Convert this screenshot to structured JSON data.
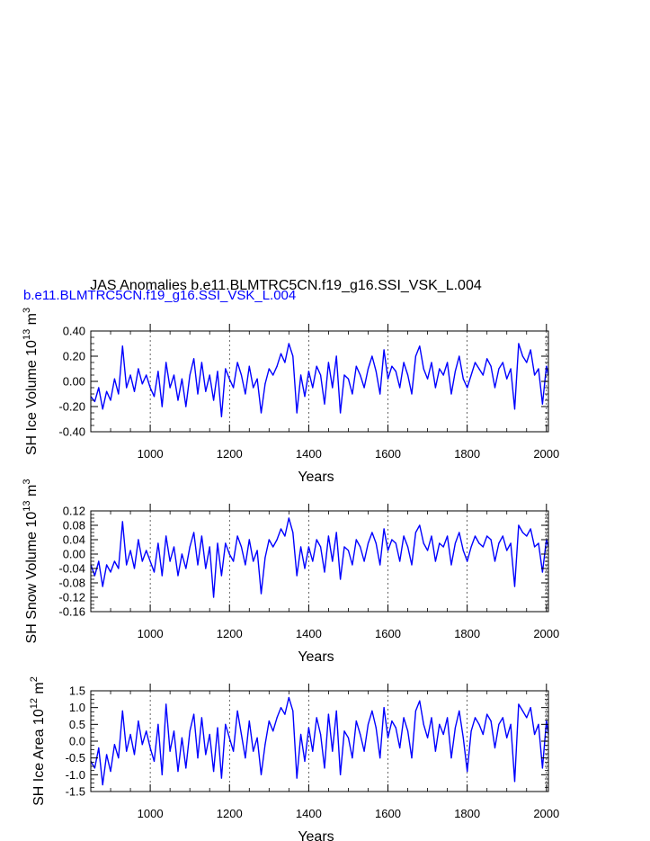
{
  "title": "JAS Anomalies b.e11.BLMTRC5CN.f19_g16.SSI_VSK_L.004",
  "subtitle": "b.e11.BLMTRC5CN.f19_g16.SSI_VSK_L.004",
  "series_color": "#0000ff",
  "chart_data": [
    {
      "type": "line",
      "panel": "ice-volume",
      "ylabel": "SH Ice Volume 10",
      "ylabel_exp": "13",
      "ylabel_unit": " m",
      "ylabel_unit_exp": "3",
      "xlabel": "Years",
      "xlim": [
        850,
        2005
      ],
      "ylim": [
        -0.4,
        0.4
      ],
      "xticks": [
        1000,
        1200,
        1400,
        1600,
        1800,
        2000
      ],
      "yticks": [
        "-0.40",
        "-0.20",
        "0.00",
        "0.20",
        "0.40"
      ],
      "yticks_values": [
        -0.4,
        -0.2,
        0.0,
        0.2,
        0.4
      ],
      "vertical_dashed_lines": [
        1000,
        1200,
        1400,
        1600,
        1800,
        2000
      ],
      "series": [
        {
          "name": "",
          "x": [
            850,
            860,
            870,
            880,
            890,
            900,
            910,
            920,
            930,
            940,
            950,
            960,
            970,
            980,
            990,
            1000,
            1010,
            1020,
            1030,
            1040,
            1050,
            1060,
            1070,
            1080,
            1090,
            1100,
            1110,
            1120,
            1130,
            1140,
            1150,
            1160,
            1170,
            1180,
            1190,
            1200,
            1210,
            1220,
            1230,
            1240,
            1250,
            1260,
            1270,
            1280,
            1290,
            1300,
            1310,
            1320,
            1330,
            1340,
            1350,
            1360,
            1370,
            1380,
            1390,
            1400,
            1410,
            1420,
            1430,
            1440,
            1450,
            1460,
            1470,
            1480,
            1490,
            1500,
            1510,
            1520,
            1530,
            1540,
            1550,
            1560,
            1570,
            1580,
            1590,
            1600,
            1610,
            1620,
            1630,
            1640,
            1650,
            1660,
            1670,
            1680,
            1690,
            1700,
            1710,
            1720,
            1730,
            1740,
            1750,
            1760,
            1770,
            1780,
            1790,
            1800,
            1810,
            1820,
            1830,
            1840,
            1850,
            1860,
            1870,
            1880,
            1890,
            1900,
            1910,
            1920,
            1930,
            1940,
            1950,
            1960,
            1970,
            1980,
            1990,
            2000,
            2005
          ],
          "y": [
            -0.12,
            -0.16,
            -0.05,
            -0.22,
            -0.08,
            -0.15,
            0.02,
            -0.1,
            0.28,
            -0.05,
            0.05,
            -0.08,
            0.1,
            -0.02,
            0.05,
            -0.05,
            -0.12,
            0.08,
            -0.2,
            0.15,
            -0.05,
            0.05,
            -0.15,
            0.02,
            -0.2,
            0.05,
            0.18,
            -0.1,
            0.15,
            -0.08,
            0.05,
            -0.15,
            0.08,
            -0.28,
            0.1,
            0.02,
            -0.05,
            0.15,
            0.05,
            -0.1,
            0.12,
            -0.05,
            0.02,
            -0.25,
            -0.02,
            0.1,
            0.05,
            0.12,
            0.22,
            0.15,
            0.3,
            0.2,
            -0.25,
            0.05,
            -0.12,
            0.08,
            -0.05,
            0.12,
            0.05,
            -0.18,
            0.15,
            -0.05,
            0.2,
            -0.25,
            0.05,
            0.02,
            -0.1,
            0.12,
            0.05,
            -0.05,
            0.1,
            0.2,
            0.08,
            -0.1,
            0.25,
            0.02,
            0.12,
            0.08,
            -0.05,
            0.15,
            0.05,
            -0.1,
            0.2,
            0.28,
            0.1,
            0.02,
            0.15,
            -0.05,
            0.1,
            0.05,
            0.15,
            -0.1,
            0.08,
            0.2,
            0.02,
            -0.05,
            0.05,
            0.15,
            0.1,
            0.05,
            0.18,
            0.12,
            -0.05,
            0.1,
            0.15,
            0.02,
            0.1,
            -0.22,
            0.3,
            0.2,
            0.15,
            0.25,
            0.05,
            0.1,
            -0.18,
            0.12,
            0.05
          ]
        }
      ]
    },
    {
      "type": "line",
      "panel": "snow-volume",
      "ylabel": "SH Snow Volume 10",
      "ylabel_exp": "13",
      "ylabel_unit": " m",
      "ylabel_unit_exp": "3",
      "xlabel": "Years",
      "xlim": [
        850,
        2005
      ],
      "ylim": [
        -0.16,
        0.12
      ],
      "xticks": [
        1000,
        1200,
        1400,
        1600,
        1800,
        2000
      ],
      "yticks": [
        "-0.16",
        "-0.12",
        "-0.08",
        "-0.04",
        "0.00",
        "0.04",
        "0.08",
        "0.12"
      ],
      "yticks_values": [
        -0.16,
        -0.12,
        -0.08,
        -0.04,
        0.0,
        0.04,
        0.08,
        0.12
      ],
      "vertical_dashed_lines": [
        1000,
        1200,
        1400,
        1600,
        1800,
        2000
      ],
      "series": [
        {
          "name": "",
          "x": [
            850,
            860,
            870,
            880,
            890,
            900,
            910,
            920,
            930,
            940,
            950,
            960,
            970,
            980,
            990,
            1000,
            1010,
            1020,
            1030,
            1040,
            1050,
            1060,
            1070,
            1080,
            1090,
            1100,
            1110,
            1120,
            1130,
            1140,
            1150,
            1160,
            1170,
            1180,
            1190,
            1200,
            1210,
            1220,
            1230,
            1240,
            1250,
            1260,
            1270,
            1280,
            1290,
            1300,
            1310,
            1320,
            1330,
            1340,
            1350,
            1360,
            1370,
            1380,
            1390,
            1400,
            1410,
            1420,
            1430,
            1440,
            1450,
            1460,
            1470,
            1480,
            1490,
            1500,
            1510,
            1520,
            1530,
            1540,
            1550,
            1560,
            1570,
            1580,
            1590,
            1600,
            1610,
            1620,
            1630,
            1640,
            1650,
            1660,
            1670,
            1680,
            1690,
            1700,
            1710,
            1720,
            1730,
            1740,
            1750,
            1760,
            1770,
            1780,
            1790,
            1800,
            1810,
            1820,
            1830,
            1840,
            1850,
            1860,
            1870,
            1880,
            1890,
            1900,
            1910,
            1920,
            1930,
            1940,
            1950,
            1960,
            1970,
            1980,
            1990,
            2000,
            2005
          ],
          "y": [
            -0.03,
            -0.06,
            -0.02,
            -0.09,
            -0.03,
            -0.05,
            -0.02,
            -0.04,
            0.09,
            -0.03,
            0.01,
            -0.04,
            0.04,
            -0.02,
            0.01,
            -0.02,
            -0.05,
            0.03,
            -0.06,
            0.05,
            -0.02,
            0.02,
            -0.06,
            0.0,
            -0.04,
            0.02,
            0.06,
            -0.03,
            0.05,
            -0.04,
            0.02,
            -0.12,
            0.03,
            -0.06,
            0.03,
            0.0,
            -0.02,
            0.05,
            0.02,
            -0.03,
            0.04,
            -0.02,
            0.01,
            -0.11,
            -0.01,
            0.04,
            0.02,
            0.04,
            0.07,
            0.05,
            0.1,
            0.06,
            -0.06,
            0.02,
            -0.04,
            0.02,
            -0.02,
            0.04,
            0.02,
            -0.05,
            0.05,
            -0.02,
            0.06,
            -0.07,
            0.02,
            0.01,
            -0.03,
            0.04,
            0.02,
            -0.02,
            0.03,
            0.06,
            0.03,
            -0.03,
            0.07,
            0.01,
            0.04,
            0.03,
            -0.02,
            0.05,
            0.02,
            -0.03,
            0.06,
            0.08,
            0.03,
            0.01,
            0.05,
            -0.02,
            0.03,
            0.02,
            0.05,
            -0.03,
            0.03,
            0.06,
            0.01,
            -0.02,
            0.02,
            0.05,
            0.03,
            0.02,
            0.05,
            0.04,
            -0.02,
            0.03,
            0.05,
            0.01,
            0.03,
            -0.09,
            0.08,
            0.06,
            0.05,
            0.07,
            0.02,
            0.03,
            -0.05,
            0.04,
            0.02
          ]
        }
      ]
    },
    {
      "type": "line",
      "panel": "ice-area",
      "ylabel": "SH Ice Area 10",
      "ylabel_exp": "12",
      "ylabel_unit": " m",
      "ylabel_unit_exp": "2",
      "xlabel": "Years",
      "xlim": [
        850,
        2005
      ],
      "ylim": [
        -1.5,
        1.5
      ],
      "xticks": [
        1000,
        1200,
        1400,
        1600,
        1800,
        2000
      ],
      "yticks": [
        "-1.5",
        "-1.0",
        "-0.5",
        "0.0",
        "0.5",
        "1.0",
        "1.5"
      ],
      "yticks_values": [
        -1.5,
        -1.0,
        -0.5,
        0.0,
        0.5,
        1.0,
        1.5
      ],
      "vertical_dashed_lines": [
        1000,
        1200,
        1400,
        1600,
        1800,
        2000
      ],
      "series": [
        {
          "name": "",
          "x": [
            850,
            860,
            870,
            880,
            890,
            900,
            910,
            920,
            930,
            940,
            950,
            960,
            970,
            980,
            990,
            1000,
            1010,
            1020,
            1030,
            1040,
            1050,
            1060,
            1070,
            1080,
            1090,
            1100,
            1110,
            1120,
            1130,
            1140,
            1150,
            1160,
            1170,
            1180,
            1190,
            1200,
            1210,
            1220,
            1230,
            1240,
            1250,
            1260,
            1270,
            1280,
            1290,
            1300,
            1310,
            1320,
            1330,
            1340,
            1350,
            1360,
            1370,
            1380,
            1390,
            1400,
            1410,
            1420,
            1430,
            1440,
            1450,
            1460,
            1470,
            1480,
            1490,
            1500,
            1510,
            1520,
            1530,
            1540,
            1550,
            1560,
            1570,
            1580,
            1590,
            1600,
            1610,
            1620,
            1630,
            1640,
            1650,
            1660,
            1670,
            1680,
            1690,
            1700,
            1710,
            1720,
            1730,
            1740,
            1750,
            1760,
            1770,
            1780,
            1790,
            1800,
            1810,
            1820,
            1830,
            1840,
            1850,
            1860,
            1870,
            1880,
            1890,
            1900,
            1910,
            1920,
            1930,
            1940,
            1950,
            1960,
            1970,
            1980,
            1990,
            2000,
            2005
          ],
          "y": [
            -0.6,
            -0.8,
            -0.2,
            -1.3,
            -0.4,
            -0.9,
            -0.1,
            -0.5,
            0.9,
            -0.3,
            0.2,
            -0.4,
            0.6,
            -0.1,
            0.3,
            -0.2,
            -0.6,
            0.5,
            -1.0,
            1.1,
            -0.3,
            0.3,
            -0.9,
            0.1,
            -0.8,
            0.3,
            0.8,
            -0.5,
            0.7,
            -0.4,
            0.2,
            -0.9,
            0.4,
            -1.1,
            0.5,
            0.1,
            -0.3,
            0.9,
            0.2,
            -0.5,
            0.6,
            -0.3,
            0.1,
            -1.0,
            -0.1,
            0.6,
            0.3,
            0.7,
            1.0,
            0.8,
            1.3,
            0.9,
            -1.1,
            0.2,
            -0.6,
            0.4,
            -0.3,
            0.7,
            0.2,
            -0.8,
            0.8,
            -0.3,
            0.9,
            -1.0,
            0.3,
            0.1,
            -0.5,
            0.6,
            0.2,
            -0.3,
            0.5,
            0.9,
            0.4,
            -0.5,
            1.0,
            0.1,
            0.6,
            0.4,
            -0.2,
            0.7,
            0.3,
            -0.5,
            0.9,
            1.2,
            0.5,
            0.1,
            0.7,
            -0.3,
            0.5,
            0.2,
            0.7,
            -0.5,
            0.4,
            0.9,
            0.1,
            -0.9,
            0.3,
            0.7,
            0.5,
            0.2,
            0.8,
            0.6,
            -0.2,
            0.5,
            0.7,
            0.1,
            0.5,
            -1.2,
            1.1,
            0.9,
            0.7,
            1.0,
            0.2,
            0.5,
            -0.8,
            0.6,
            0.2
          ]
        }
      ]
    }
  ]
}
